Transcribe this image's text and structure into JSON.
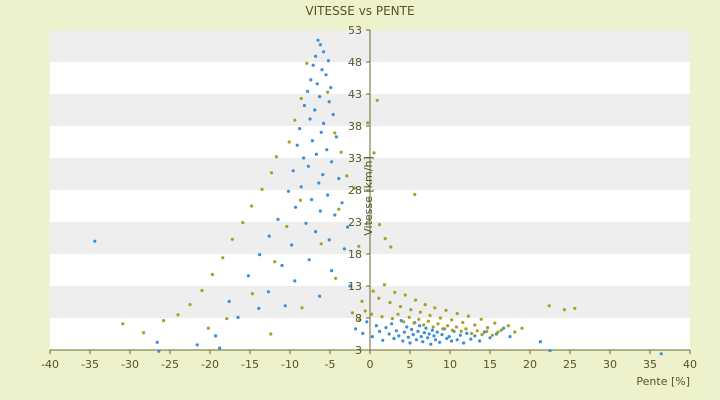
{
  "chart_data": {
    "type": "scatter",
    "title": "VITESSE vs PENTE",
    "xlabel": "Pente [%]",
    "ylabel": "Vitesse [km/h]",
    "xlim": [
      -40,
      40
    ],
    "ylim": [
      3,
      53
    ],
    "x_ticks": [
      -40,
      -35,
      -30,
      -25,
      -20,
      -15,
      -10,
      -5,
      0,
      5,
      10,
      15,
      20,
      25,
      30,
      35,
      40
    ],
    "y_ticks": [
      3,
      8,
      13,
      18,
      23,
      28,
      33,
      38,
      43,
      48,
      53
    ],
    "grid": "horizontal bands",
    "legend": "none",
    "colors": {
      "page_background": "#eef2cc",
      "band_light": "#ffffff",
      "band_dark": "#eeeeee",
      "axis": "#6b6b2a",
      "series_blue": "#3a8fd6",
      "series_olive": "#a8a020"
    },
    "series": [
      {
        "color": "#3a8fd6",
        "points": [
          [
            -6.5,
            51.4
          ],
          [
            -6.2,
            50.7
          ],
          [
            -5.8,
            49.6
          ],
          [
            -6.8,
            48.9
          ],
          [
            -5.2,
            48.2
          ],
          [
            -7.1,
            47.5
          ],
          [
            -6,
            46.8
          ],
          [
            -5.5,
            46
          ],
          [
            -7.4,
            45.2
          ],
          [
            -6.6,
            44.6
          ],
          [
            -4.9,
            44
          ],
          [
            -7.8,
            43.4
          ],
          [
            -6.3,
            42.6
          ],
          [
            -5.1,
            41.8
          ],
          [
            -8.2,
            41.2
          ],
          [
            -6.9,
            40.5
          ],
          [
            -4.6,
            39.8
          ],
          [
            -7.5,
            39.1
          ],
          [
            -5.8,
            38.4
          ],
          [
            -8.8,
            37.6
          ],
          [
            -6.1,
            37
          ],
          [
            -4.2,
            36.3
          ],
          [
            -7.2,
            35.7
          ],
          [
            -9.1,
            35
          ],
          [
            -5.4,
            34.3
          ],
          [
            -6.7,
            33.6
          ],
          [
            -8.3,
            33
          ],
          [
            -4.8,
            32.4
          ],
          [
            -7.7,
            31.7
          ],
          [
            -9.6,
            31
          ],
          [
            -5.9,
            30.4
          ],
          [
            -3.9,
            29.8
          ],
          [
            -6.4,
            29.1
          ],
          [
            -8.6,
            28.5
          ],
          [
            -10.2,
            27.8
          ],
          [
            -5.3,
            27.2
          ],
          [
            -7.3,
            26.5
          ],
          [
            -3.5,
            26
          ],
          [
            -9.3,
            25.3
          ],
          [
            -6.2,
            24.7
          ],
          [
            -4.4,
            24.1
          ],
          [
            -11.5,
            23.4
          ],
          [
            -8,
            22.8
          ],
          [
            -2.8,
            22.2
          ],
          [
            -6.8,
            21.5
          ],
          [
            -12.6,
            20.8
          ],
          [
            -5.1,
            20.2
          ],
          [
            -9.8,
            19.4
          ],
          [
            -3.2,
            18.8
          ],
          [
            -13.8,
            17.9
          ],
          [
            -7.6,
            17.1
          ],
          [
            -11,
            16.2
          ],
          [
            -4.8,
            15.4
          ],
          [
            -15.2,
            14.6
          ],
          [
            -9.4,
            13.8
          ],
          [
            -2.5,
            13
          ],
          [
            -12.7,
            12.1
          ],
          [
            -6.3,
            11.4
          ],
          [
            -17.6,
            10.6
          ],
          [
            -10.6,
            9.9
          ],
          [
            -34.4,
            20
          ],
          [
            -26.6,
            4.2
          ],
          [
            -26.4,
            2.8
          ],
          [
            -21.6,
            3.8
          ],
          [
            -19.3,
            5.2
          ],
          [
            -18.8,
            3.3
          ],
          [
            -16.5,
            8.1
          ],
          [
            -13.9,
            9.5
          ],
          [
            -1.8,
            6.3
          ],
          [
            -0.9,
            5.6
          ],
          [
            -0.4,
            7.4
          ],
          [
            0.3,
            5.1
          ],
          [
            0.8,
            6.8
          ],
          [
            1.2,
            5.9
          ],
          [
            1.6,
            4.5
          ],
          [
            2,
            6.5
          ],
          [
            2.4,
            5.5
          ],
          [
            2.7,
            7.1
          ],
          [
            3,
            4.8
          ],
          [
            3.3,
            6
          ],
          [
            3.6,
            5.2
          ],
          [
            3.9,
            7.6
          ],
          [
            4.1,
            4.4
          ],
          [
            4.3,
            5.8
          ],
          [
            4.6,
            6.6
          ],
          [
            4.8,
            5
          ],
          [
            5,
            4.1
          ],
          [
            5.2,
            6.2
          ],
          [
            5.4,
            5.4
          ],
          [
            5.6,
            7.3
          ],
          [
            5.8,
            4.6
          ],
          [
            6,
            5.9
          ],
          [
            6.2,
            6.8
          ],
          [
            6.4,
            5.1
          ],
          [
            6.6,
            4.3
          ],
          [
            6.8,
            5.7
          ],
          [
            7,
            6.4
          ],
          [
            7.2,
            4.9
          ],
          [
            7.4,
            5.5
          ],
          [
            7.6,
            3.9
          ],
          [
            7.8,
            6.1
          ],
          [
            8,
            5.2
          ],
          [
            8.2,
            4.6
          ],
          [
            8.4,
            5.8
          ],
          [
            8.7,
            4.2
          ],
          [
            9,
            5.4
          ],
          [
            9.3,
            6.3
          ],
          [
            9.6,
            4.8
          ],
          [
            9.9,
            5.1
          ],
          [
            10.2,
            4.4
          ],
          [
            10.5,
            5.9
          ],
          [
            10.9,
            4.6
          ],
          [
            11.3,
            5.3
          ],
          [
            11.7,
            4.1
          ],
          [
            12.1,
            5.6
          ],
          [
            12.6,
            4.7
          ],
          [
            13.1,
            5.2
          ],
          [
            13.7,
            4.4
          ],
          [
            14.3,
            5.8
          ],
          [
            15,
            4.9
          ],
          [
            15.8,
            5.5
          ],
          [
            16.7,
            6.4
          ],
          [
            17.5,
            5.1
          ],
          [
            21.3,
            4.3
          ],
          [
            22.5,
            2.9
          ],
          [
            36.4,
            2.4
          ]
        ]
      },
      {
        "color": "#a8a020",
        "points": [
          [
            -7.9,
            47.8
          ],
          [
            -8.6,
            42.3
          ],
          [
            -5.3,
            43.3
          ],
          [
            -9.4,
            38.9
          ],
          [
            -4.4,
            36.9
          ],
          [
            -10.1,
            35.5
          ],
          [
            -11.7,
            33.2
          ],
          [
            -3.6,
            33.9
          ],
          [
            -12.3,
            30.7
          ],
          [
            -2.9,
            30.2
          ],
          [
            -13.5,
            28.1
          ],
          [
            -8.7,
            26.4
          ],
          [
            -14.8,
            25.5
          ],
          [
            -3.9,
            25
          ],
          [
            -15.9,
            22.9
          ],
          [
            -10.4,
            22.3
          ],
          [
            -17.2,
            20.3
          ],
          [
            -6.1,
            19.6
          ],
          [
            -18.4,
            17.4
          ],
          [
            -11.9,
            16.8
          ],
          [
            -19.7,
            14.8
          ],
          [
            -4.3,
            14.2
          ],
          [
            -21,
            12.3
          ],
          [
            -14.7,
            11.8
          ],
          [
            -22.5,
            10.1
          ],
          [
            -8.5,
            9.6
          ],
          [
            -24,
            8.5
          ],
          [
            -17.9,
            7.9
          ],
          [
            -25.8,
            7.6
          ],
          [
            -30.9,
            7.1
          ],
          [
            -20.2,
            6.4
          ],
          [
            -28.3,
            5.7
          ],
          [
            -12.4,
            5.5
          ],
          [
            -1.9,
            28.3
          ],
          [
            -1.4,
            19.2
          ],
          [
            0.5,
            33.8
          ],
          [
            1.2,
            22.6
          ],
          [
            1.9,
            20.4
          ],
          [
            2.6,
            19.1
          ],
          [
            5.6,
            27.3
          ],
          [
            -0.3,
            38.5
          ],
          [
            0.9,
            42
          ],
          [
            -1,
            10.6
          ],
          [
            0.4,
            12.2
          ],
          [
            1.1,
            11.1
          ],
          [
            1.8,
            13.2
          ],
          [
            2.5,
            10.4
          ],
          [
            3.1,
            12
          ],
          [
            3.8,
            9.8
          ],
          [
            4.4,
            11.6
          ],
          [
            5.1,
            9.3
          ],
          [
            5.7,
            10.8
          ],
          [
            6.3,
            8.9
          ],
          [
            6.9,
            10.1
          ],
          [
            7.5,
            8.4
          ],
          [
            8.1,
            9.6
          ],
          [
            8.8,
            8
          ],
          [
            9.5,
            9.2
          ],
          [
            10.2,
            7.7
          ],
          [
            10.9,
            8.7
          ],
          [
            11.6,
            7.3
          ],
          [
            12.3,
            8.3
          ],
          [
            13.1,
            6.9
          ],
          [
            13.9,
            7.8
          ],
          [
            14.7,
            6.5
          ],
          [
            15.6,
            7.2
          ],
          [
            16.4,
            6.1
          ],
          [
            17.3,
            6.8
          ],
          [
            18.1,
            5.8
          ],
          [
            19,
            6.4
          ],
          [
            22.4,
            9.9
          ],
          [
            24.3,
            9.3
          ],
          [
            25.6,
            9.5
          ],
          [
            1.5,
            8.2
          ],
          [
            2.8,
            7.9
          ],
          [
            3.5,
            8.6
          ],
          [
            4.2,
            7.4
          ],
          [
            4.9,
            8.1
          ],
          [
            5.5,
            7.2
          ],
          [
            6.1,
            7.8
          ],
          [
            6.7,
            6.9
          ],
          [
            7.3,
            7.5
          ],
          [
            7.9,
            6.6
          ],
          [
            8.5,
            7.1
          ],
          [
            9.1,
            6.3
          ],
          [
            9.7,
            6.8
          ],
          [
            10.3,
            6.1
          ],
          [
            10.8,
            6.6
          ],
          [
            11.4,
            5.9
          ],
          [
            12,
            6.3
          ],
          [
            12.7,
            5.6
          ],
          [
            13.4,
            6
          ],
          [
            14,
            5.4
          ],
          [
            14.6,
            5.9
          ],
          [
            15.3,
            5.3
          ],
          [
            16,
            5.8
          ],
          [
            -2.2,
            8.8
          ],
          [
            -0.6,
            9.1
          ],
          [
            -1.3,
            7.7
          ],
          [
            0.2,
            8.6
          ]
        ]
      }
    ]
  }
}
